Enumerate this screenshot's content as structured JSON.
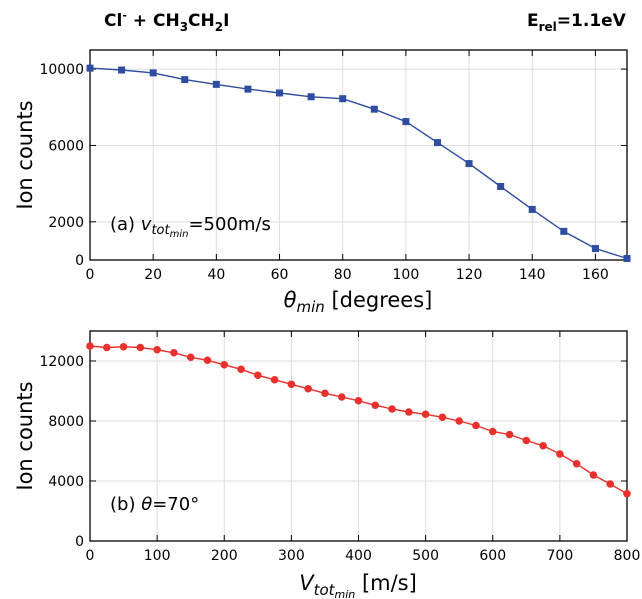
{
  "header": {
    "reaction": {
      "a": "Cl",
      "a_sup": "-",
      "b": " + CH",
      "sub1": "3",
      "c": "CH",
      "sub2": "2",
      "d": "I"
    },
    "energy": {
      "e": "E",
      "e_sub": "rel",
      "rest": "=1.1eV"
    }
  },
  "chart_data": [
    {
      "type": "line",
      "panel_label": "(a)",
      "annotation": {
        "prefix": "(a) ",
        "var": "v",
        "sub": "tot",
        "subsub": "min",
        "rest": "=500m/s"
      },
      "xlabel": {
        "var": "θ",
        "sub": "min",
        "rest": " [degrees]"
      },
      "ylabel": "Ion counts",
      "xlim": [
        0,
        170
      ],
      "ylim": [
        0,
        11000
      ],
      "xticks": [
        0,
        20,
        40,
        60,
        80,
        100,
        120,
        140,
        160
      ],
      "yticks": [
        0,
        2000,
        6000,
        10000
      ],
      "marker": "square",
      "color": "#2e4da0",
      "series": [
        {
          "x": [
            0,
            10,
            20,
            30,
            40,
            50,
            60,
            70,
            80,
            90,
            100,
            110,
            120,
            130,
            140,
            150,
            160,
            170
          ],
          "y": [
            10050,
            9950,
            9800,
            9450,
            9200,
            8950,
            8750,
            8550,
            8450,
            7900,
            7250,
            6150,
            5050,
            3850,
            2650,
            1500,
            600,
            80
          ]
        }
      ]
    },
    {
      "type": "line",
      "panel_label": "(b)",
      "annotation": {
        "prefix": "(b) ",
        "var": "θ",
        "rest": "=70°"
      },
      "xlabel": {
        "var": "V",
        "sub": "tot",
        "subsub": "min",
        "rest": " [m/s]"
      },
      "ylabel": "Ion counts",
      "xlim": [
        0,
        800
      ],
      "ylim": [
        0,
        14000
      ],
      "xticks": [
        0,
        100,
        200,
        300,
        400,
        500,
        600,
        700,
        800
      ],
      "yticks": [
        0,
        4000,
        8000,
        12000
      ],
      "marker": "circle",
      "color": "#e8302c",
      "series": [
        {
          "x": [
            0,
            25,
            50,
            75,
            100,
            125,
            150,
            175,
            200,
            225,
            250,
            275,
            300,
            325,
            350,
            375,
            400,
            425,
            450,
            475,
            500,
            525,
            550,
            575,
            600,
            625,
            650,
            675,
            700,
            725,
            750,
            775,
            800
          ],
          "y": [
            13000,
            12900,
            12950,
            12900,
            12750,
            12550,
            12250,
            12050,
            11750,
            11450,
            11050,
            10750,
            10450,
            10150,
            9850,
            9600,
            9350,
            9050,
            8800,
            8600,
            8450,
            8250,
            8000,
            7700,
            7300,
            7100,
            6700,
            6350,
            5800,
            5150,
            4400,
            3800,
            3150
          ]
        }
      ]
    }
  ]
}
